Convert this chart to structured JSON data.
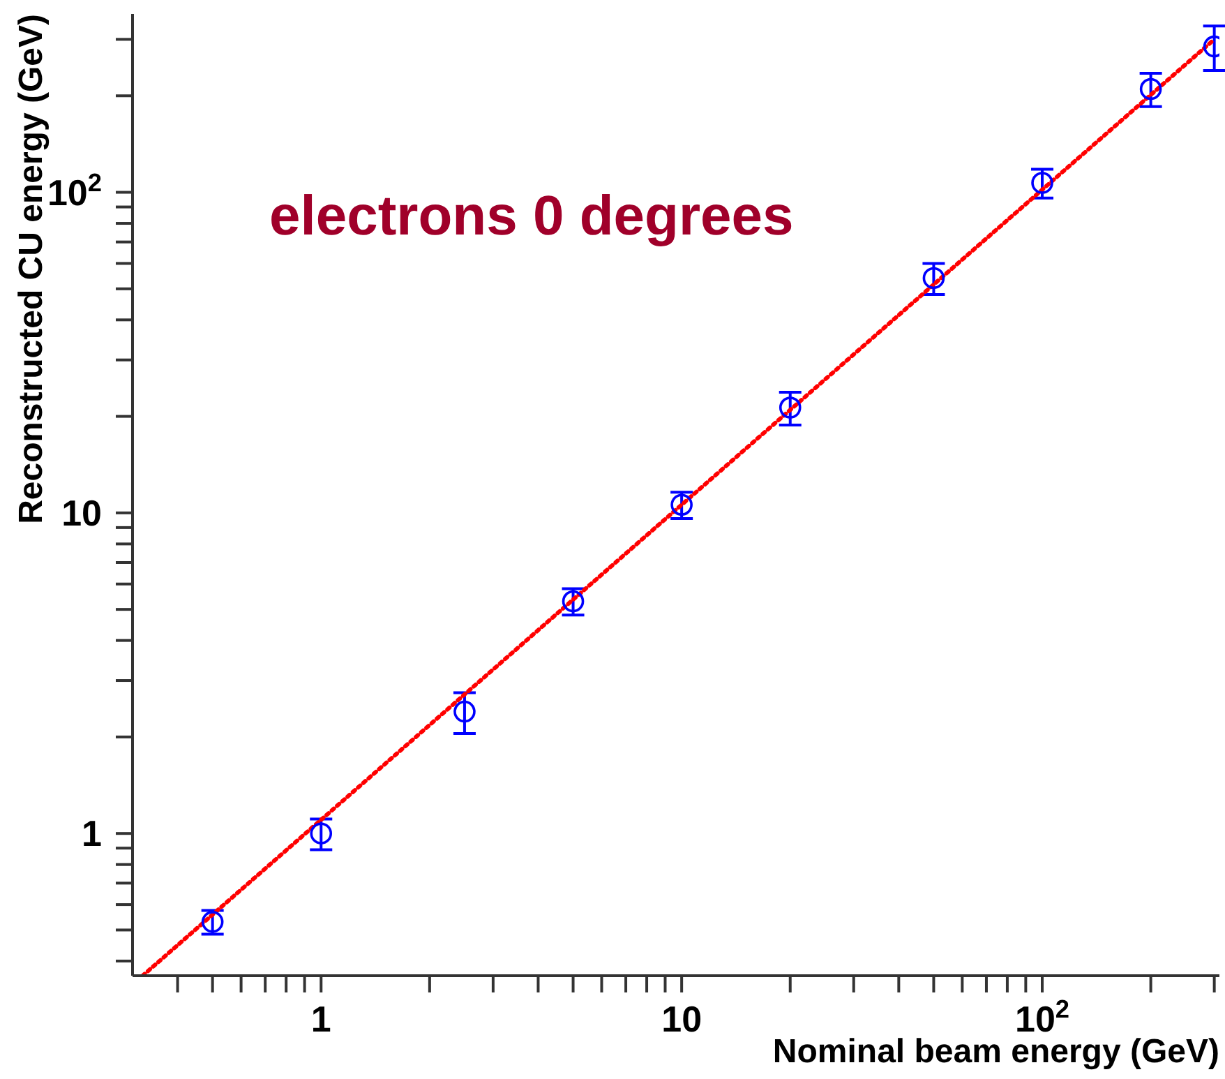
{
  "chart_data": {
    "type": "scatter",
    "xlabel": "Nominal beam energy (GeV)",
    "ylabel": "Reconstructed CU energy (GeV)",
    "annotations": [
      "electrons 0 degrees"
    ],
    "log": "xy",
    "xlim": [
      0.3,
      310
    ],
    "ylim": [
      0.36,
      360
    ],
    "xticks": [
      {
        "value": 0.4,
        "label": null
      },
      {
        "value": 0.5,
        "label": null
      },
      {
        "value": 0.6,
        "label": null
      },
      {
        "value": 0.7,
        "label": null
      },
      {
        "value": 0.8,
        "label": null
      },
      {
        "value": 0.9,
        "label": null
      },
      1,
      {
        "value": 2,
        "label": null
      },
      {
        "value": 3,
        "label": null
      },
      {
        "value": 4,
        "label": null
      },
      {
        "value": 5,
        "label": null
      },
      {
        "value": 6,
        "label": null
      },
      {
        "value": 7,
        "label": null
      },
      {
        "value": 8,
        "label": null
      },
      {
        "value": 9,
        "label": null
      },
      10,
      {
        "value": 20,
        "label": null
      },
      {
        "value": 30,
        "label": null
      },
      {
        "value": 40,
        "label": null
      },
      {
        "value": 50,
        "label": null
      },
      {
        "value": 60,
        "label": null
      },
      {
        "value": 70,
        "label": null
      },
      {
        "value": 80,
        "label": null
      },
      {
        "value": 90,
        "label": null
      },
      {
        "value": 100,
        "label": "10$^{2}$"
      },
      {
        "value": 200,
        "label": null
      },
      {
        "value": 300,
        "label": null
      }
    ],
    "yticks": [
      {
        "value": 0.4,
        "label": null
      },
      {
        "value": 0.5,
        "label": null
      },
      {
        "value": 0.6,
        "label": null
      },
      {
        "value": 0.7,
        "label": null
      },
      {
        "value": 0.8,
        "label": null
      },
      {
        "value": 0.9,
        "label": null
      },
      1,
      {
        "value": 2,
        "label": null
      },
      {
        "value": 3,
        "label": null
      },
      {
        "value": 4,
        "label": null
      },
      {
        "value": 5,
        "label": null
      },
      {
        "value": 6,
        "label": null
      },
      {
        "value": 7,
        "label": null
      },
      {
        "value": 8,
        "label": null
      },
      {
        "value": 9,
        "label": null
      },
      10,
      {
        "value": 20,
        "label": null
      },
      {
        "value": 30,
        "label": null
      },
      {
        "value": 40,
        "label": null
      },
      {
        "value": 50,
        "label": null
      },
      {
        "value": 60,
        "label": null
      },
      {
        "value": 70,
        "label": null
      },
      {
        "value": 80,
        "label": null
      },
      {
        "value": 90,
        "label": null
      },
      {
        "value": 100,
        "label": "10$^{2}$"
      },
      {
        "value": 200,
        "label": null
      },
      {
        "value": 300,
        "label": null
      }
    ],
    "series": [
      {
        "color": "#0000ff",
        "marker": "circle",
        "x": [
          0.5,
          1,
          2.5,
          5,
          10,
          20,
          50,
          100,
          200,
          300
        ],
        "values": [
          0.53,
          1.0,
          2.4,
          5.3,
          10.6,
          21.3,
          54,
          107,
          210,
          285
        ],
        "errors": [
          0.045,
          0.11,
          0.35,
          0.5,
          1,
          2.5,
          6,
          11,
          25,
          45
        ]
      },
      {
        "type": "line",
        "color": "#ff0000",
        "line_style": "dotted",
        "x": [
          0.32,
          300
        ],
        "values": [
          0.36,
          300
        ]
      }
    ]
  }
}
